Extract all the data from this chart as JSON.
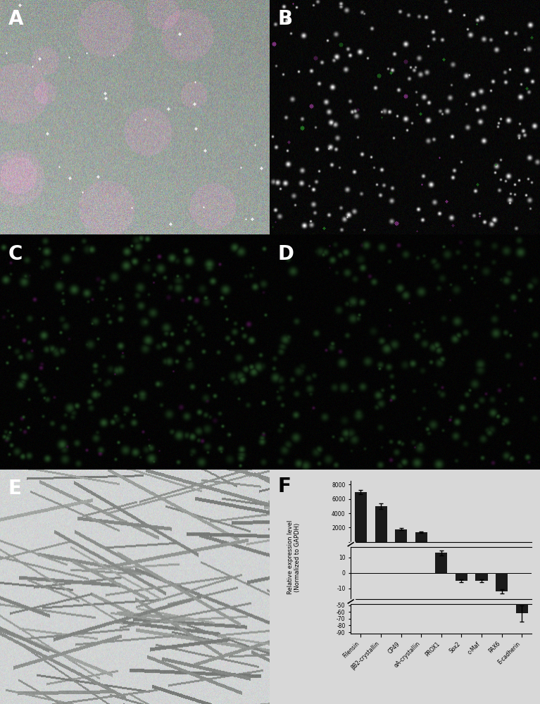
{
  "categories": [
    "Filensin",
    "βB2-crystallin",
    "CP49",
    "αA-crystallin",
    "PROX1",
    "Sox2",
    "c-Maf",
    "PAX6",
    "E-cadherin"
  ],
  "values": [
    7000,
    5000,
    1800,
    1400,
    13,
    -5,
    -5,
    -12,
    -62
  ],
  "errors": [
    300,
    400,
    150,
    100,
    1.5,
    1.0,
    0.8,
    1.5,
    12
  ],
  "ylabel": "Relative expression level\n(Normalized to GAPDH)",
  "bar_color": "#1a1a1a",
  "panel_F_bg": "#d8d8d8",
  "top_yticks": [
    0,
    2000,
    4000,
    6000,
    8000
  ],
  "top_ylabels": [
    "",
    "2000",
    "4000",
    "6000",
    "8000"
  ],
  "mid_yticks": [
    -10,
    0,
    10
  ],
  "mid_ylabels": [
    "-10",
    "0",
    "10"
  ],
  "bot_yticks": [
    -90,
    -80,
    -70,
    -60,
    -50
  ],
  "bot_ylabels": [
    "-90",
    "-80",
    "-70",
    "-60",
    "-50"
  ]
}
